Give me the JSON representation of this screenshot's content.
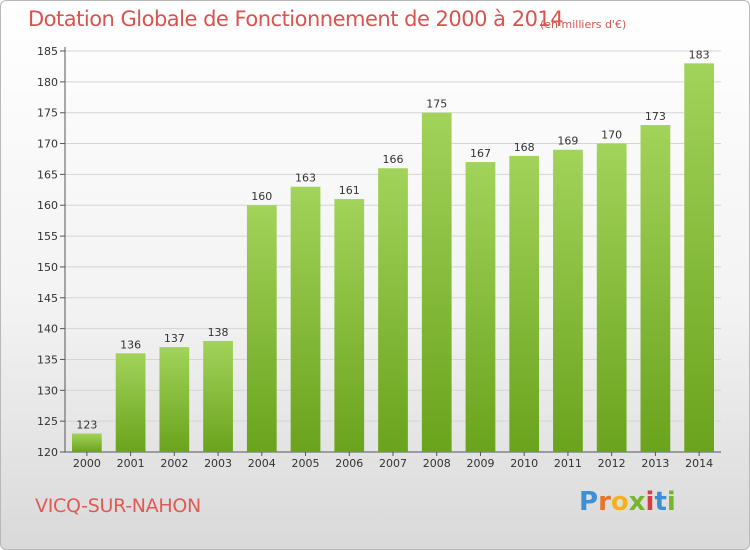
{
  "header": {
    "title": "Dotation Globale de Fonctionnement de 2000 à 2014",
    "subtitle": "(en milliers d'€)"
  },
  "footer": {
    "commune": "VICQ-SUR-NAHON",
    "logo_letters": [
      "P",
      "r",
      "o",
      "x",
      "i",
      "t",
      "i"
    ],
    "logo_colors": [
      "#3d8fd6",
      "#e8742c",
      "#f2b21d",
      "#78b52f",
      "#d63e3e",
      "#3d8fd6",
      "#78b52f"
    ]
  },
  "chart_data": {
    "type": "bar",
    "title": "Dotation Globale de Fonctionnement de 2000 à 2014",
    "subtitle": "(en milliers d'€)",
    "categories": [
      "2000",
      "2001",
      "2002",
      "2003",
      "2004",
      "2005",
      "2006",
      "2007",
      "2008",
      "2009",
      "2010",
      "2011",
      "2012",
      "2013",
      "2014"
    ],
    "values": [
      123,
      136,
      137,
      138,
      160,
      163,
      161,
      166,
      175,
      167,
      168,
      169,
      170,
      173,
      183
    ],
    "value_labels": [
      "123",
      "136",
      "137",
      "138",
      "160",
      "163",
      "161",
      "166",
      "175",
      "167",
      "168",
      "169",
      "170",
      "173",
      "183"
    ],
    "ylim": [
      120,
      185
    ],
    "yticks": [
      "120",
      "125",
      "130",
      "135",
      "140",
      "145",
      "150",
      "155",
      "160",
      "165",
      "170",
      "175",
      "180",
      "185"
    ],
    "ytick_values": [
      120,
      125,
      130,
      135,
      140,
      145,
      150,
      155,
      160,
      165,
      170,
      175,
      180,
      185
    ],
    "grid": true,
    "colors": {
      "bar_light": "#a2d35a",
      "bar_dark": "#6aa31c",
      "grid": "#d5d5d5"
    }
  }
}
